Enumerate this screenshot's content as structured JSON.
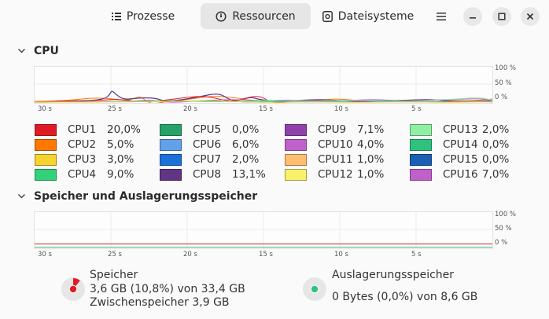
{
  "header": {
    "tabs": [
      {
        "label": "Prozesse",
        "icon": "list-icon",
        "active": false
      },
      {
        "label": "Ressourcen",
        "icon": "gauge-icon",
        "active": true
      },
      {
        "label": "Dateisysteme",
        "icon": "disk-icon",
        "active": false
      }
    ],
    "menu_icon": "hamburger-menu-icon",
    "window_controls": [
      "minimize-icon",
      "maximize-icon",
      "close-icon"
    ]
  },
  "cpu": {
    "title": "CPU",
    "y_labels": [
      "100 %",
      "50 %",
      "0 %"
    ],
    "x_labels": [
      "30 s",
      "25 s",
      "20 s",
      "15 s",
      "10 s",
      "5 s"
    ],
    "cores": [
      {
        "name": "CPU1",
        "value": "20,0%",
        "color": "#e01b24"
      },
      {
        "name": "CPU2",
        "value": "5,0%",
        "color": "#ff7800"
      },
      {
        "name": "CPU3",
        "value": "3,0%",
        "color": "#f6d32d"
      },
      {
        "name": "CPU4",
        "value": "9,0%",
        "color": "#33d17a"
      },
      {
        "name": "CPU5",
        "value": "0,0%",
        "color": "#26a269"
      },
      {
        "name": "CPU6",
        "value": "6,0%",
        "color": "#62a0ea"
      },
      {
        "name": "CPU7",
        "value": "2,0%",
        "color": "#1c71d8"
      },
      {
        "name": "CPU8",
        "value": "13,1%",
        "color": "#613583"
      },
      {
        "name": "CPU9",
        "value": "7,1%",
        "color": "#9141ac"
      },
      {
        "name": "CPU10",
        "value": "4,0%",
        "color": "#c061cb"
      },
      {
        "name": "CPU11",
        "value": "1,0%",
        "color": "#ffbe6f"
      },
      {
        "name": "CPU12",
        "value": "1,0%",
        "color": "#f9f06b"
      },
      {
        "name": "CPU13",
        "value": "2,0%",
        "color": "#8ff0a4"
      },
      {
        "name": "CPU14",
        "value": "0,0%",
        "color": "#2ec27e"
      },
      {
        "name": "CPU15",
        "value": "0,0%",
        "color": "#1a5fb4"
      },
      {
        "name": "CPU16",
        "value": "7,0%",
        "color": "#c061cb"
      }
    ]
  },
  "memory": {
    "title": "Speicher und Auslagerungsspeicher",
    "y_labels": [
      "100 %",
      "50 %",
      "0 %"
    ],
    "x_labels": [
      "30 s",
      "25 s",
      "20 s",
      "15 s",
      "10 s",
      "5 s"
    ],
    "ram": {
      "label": "Speicher",
      "usage": "3,6 GB (10,8%) von 33,4 GB",
      "cache": "Zwischenspeicher 3,9 GB",
      "fraction": 0.108,
      "color": "#e01b24"
    },
    "swap": {
      "label": "Auslagerungsspeicher",
      "usage": "0 Bytes (0,0%) von 8,6 GB",
      "fraction": 0.0,
      "color": "#2ec27e"
    }
  }
}
